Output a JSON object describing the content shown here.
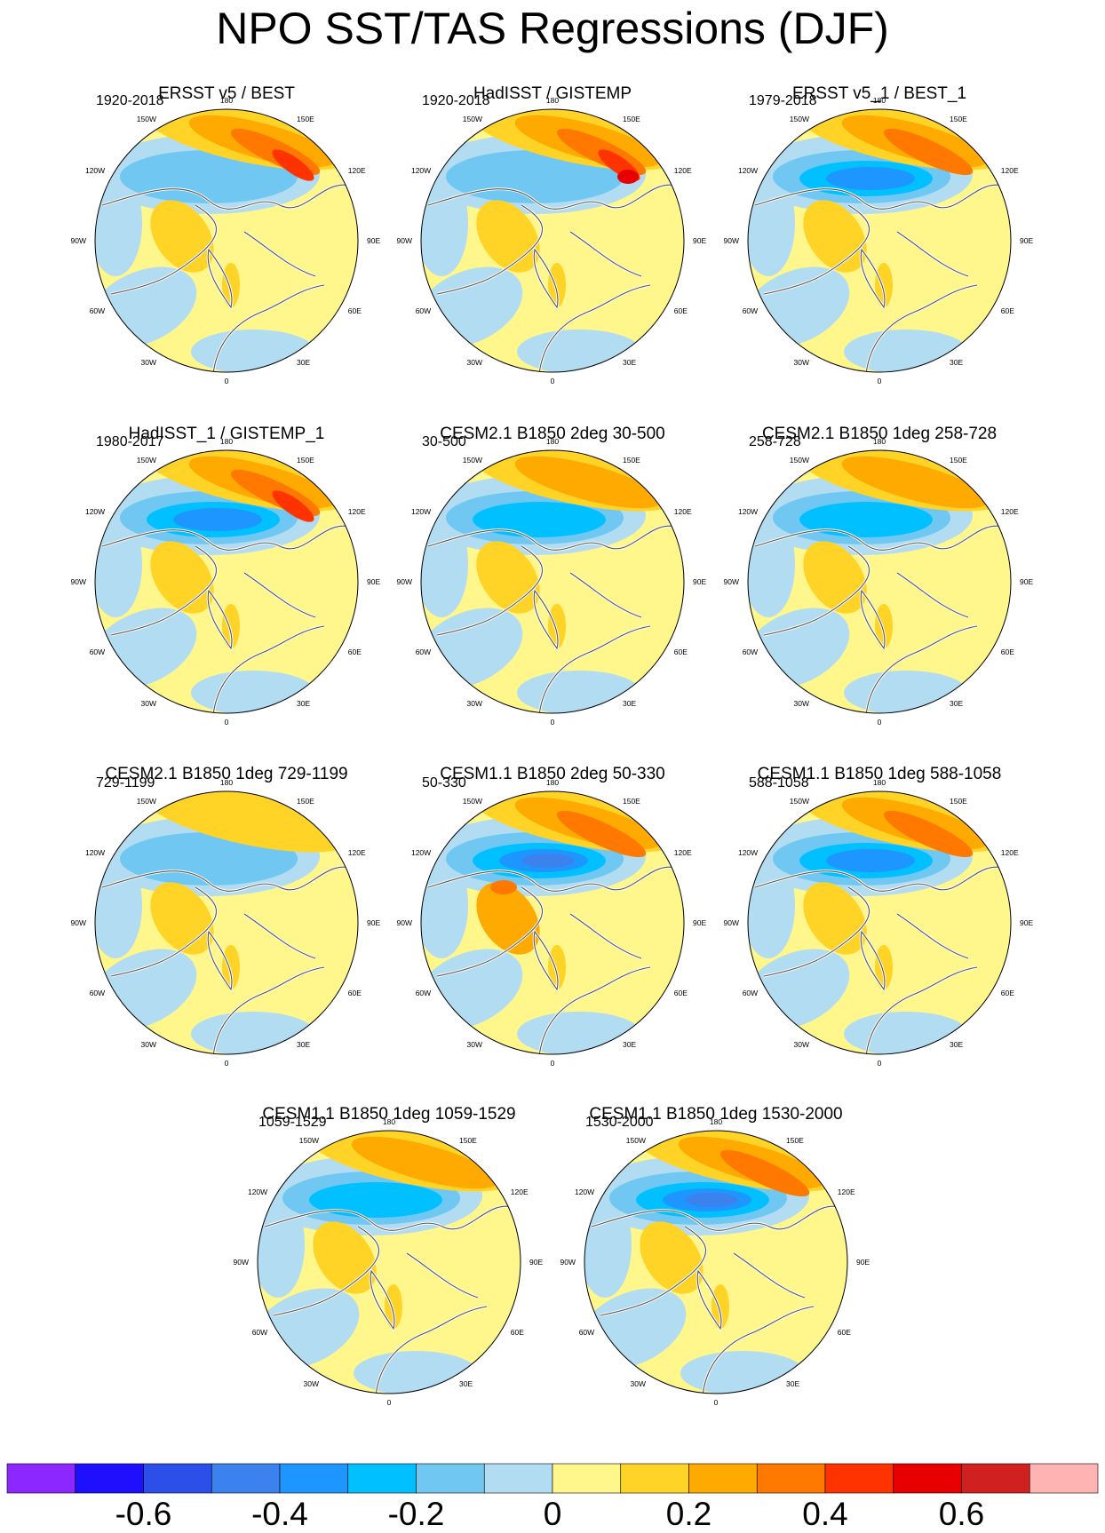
{
  "title": "NPO SST/TAS Regressions (DJF)",
  "chart_data": {
    "type": "polar-map-panels",
    "projection": "north-polar-stereographic",
    "variable": "SST/TAS regression on NPO index (DJF)",
    "longitude_labels": [
      "180",
      "150E",
      "120E",
      "90E",
      "60E",
      "30E",
      "0",
      "30W",
      "60W",
      "90W",
      "120W",
      "150W"
    ],
    "colorbar": {
      "colors": [
        "#8c28ff",
        "#1e0fff",
        "#2b4fe8",
        "#3c82ee",
        "#1e96ff",
        "#00c0ff",
        "#70c8f2",
        "#b2dcf2",
        "#fff68c",
        "#ffd427",
        "#ffaa00",
        "#ff7800",
        "#ff3300",
        "#e80000",
        "#d12020",
        "#ffb4b4"
      ],
      "tick_labels": [
        "-0.6",
        "-0.4",
        "-0.2",
        "0",
        "0.2",
        "0.4",
        "0.6"
      ],
      "tick_values": [
        -0.6,
        -0.4,
        -0.2,
        0,
        0.2,
        0.4,
        0.6
      ],
      "range": [
        -0.8,
        0.8
      ],
      "interval": 0.1
    },
    "panels": [
      {
        "title": "ERSST v5 / BEST",
        "period": "1920-2018",
        "pacific_high_max": 0.5,
        "pacific_low_min": -0.15,
        "arctic_band": 0.15
      },
      {
        "title": "HadISST / GISTEMP",
        "period": "1920-2018",
        "pacific_high_max": 0.55,
        "pacific_low_min": -0.15,
        "arctic_band": 0.15
      },
      {
        "title": "ERSST v5_1 / BEST_1",
        "period": "1979-2018",
        "pacific_high_max": 0.35,
        "pacific_low_min": -0.35,
        "arctic_band": 0.15
      },
      {
        "title": "HadISST_1 / GISTEMP_1",
        "period": "1980-2017",
        "pacific_high_max": 0.45,
        "pacific_low_min": -0.35,
        "arctic_band": 0.15
      },
      {
        "title": "CESM2.1 B1850 2deg 30-500",
        "period": "30-500",
        "pacific_high_max": 0.25,
        "pacific_low_min": -0.25,
        "arctic_band": 0.15
      },
      {
        "title": "CESM2.1 B1850 1deg 258-728",
        "period": "258-728",
        "pacific_high_max": 0.25,
        "pacific_low_min": -0.25,
        "arctic_band": 0.15
      },
      {
        "title": "CESM2.1 B1850 1deg 729-1199",
        "period": "729-1199",
        "pacific_high_max": 0.15,
        "pacific_low_min": -0.15,
        "arctic_band": 0.15
      },
      {
        "title": "CESM1.1 B1850 2deg 50-330",
        "period": "50-330",
        "pacific_high_max": 0.35,
        "pacific_low_min": -0.55,
        "arctic_band": 0.25
      },
      {
        "title": "CESM1.1 B1850 1deg 588-1058",
        "period": "588-1058",
        "pacific_high_max": 0.35,
        "pacific_low_min": -0.35,
        "arctic_band": 0.15
      },
      {
        "title": "CESM1.1 B1850 1deg 1059-1529",
        "period": "1059-1529",
        "pacific_high_max": 0.25,
        "pacific_low_min": -0.25,
        "arctic_band": 0.15
      },
      {
        "title": "CESM1.1 B1850 1deg 1530-2000",
        "period": "1530-2000",
        "pacific_high_max": 0.35,
        "pacific_low_min": -0.45,
        "arctic_band": 0.15
      }
    ]
  }
}
